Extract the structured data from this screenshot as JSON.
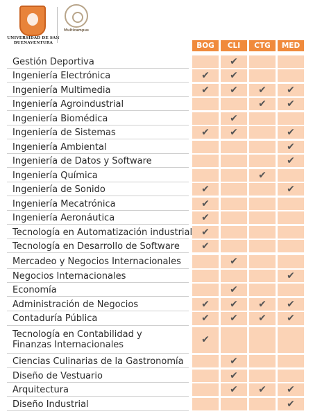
{
  "header": {
    "university": "UNIVERSIDAD DE SAN BUENAVENTURA",
    "multicampus": "Multicampus"
  },
  "columns": [
    "BOG",
    "CLI",
    "CTG",
    "MED"
  ],
  "check_glyph": "✔",
  "rows": [
    {
      "label": "Gestión Deportiva",
      "checks": [
        false,
        true,
        false,
        false
      ]
    },
    {
      "label": "Ingeniería Electrónica",
      "checks": [
        true,
        true,
        false,
        false
      ]
    },
    {
      "label": "Ingeniería Multimedia",
      "checks": [
        true,
        true,
        true,
        true
      ]
    },
    {
      "label": "Ingeniería Agroindustrial",
      "checks": [
        false,
        false,
        true,
        true
      ]
    },
    {
      "label": "Ingeniería Biomédica",
      "checks": [
        false,
        true,
        false,
        false
      ]
    },
    {
      "label": "Ingeniería de Sistemas",
      "checks": [
        true,
        true,
        false,
        true
      ]
    },
    {
      "label": "Ingeniería Ambiental",
      "checks": [
        false,
        false,
        false,
        true
      ]
    },
    {
      "label": "Ingeniería de Datos y Software",
      "checks": [
        false,
        false,
        false,
        true
      ]
    },
    {
      "label": "Ingeniería Química",
      "checks": [
        false,
        false,
        true,
        false
      ]
    },
    {
      "label": "Ingeniería de Sonido",
      "checks": [
        true,
        false,
        false,
        true
      ]
    },
    {
      "label": "Ingeniería Mecatrónica",
      "checks": [
        true,
        false,
        false,
        false
      ]
    },
    {
      "label": "Ingeniería Aeronáutica",
      "checks": [
        true,
        false,
        false,
        false
      ]
    },
    {
      "label": "Tecnología en Automatización industrial",
      "checks": [
        true,
        false,
        false,
        false
      ]
    },
    {
      "label": "Tecnología en Desarrollo de Software",
      "checks": [
        true,
        false,
        false,
        false
      ]
    },
    {
      "label": "Mercadeo y Negocios Internacionales",
      "checks": [
        false,
        true,
        false,
        false
      ]
    },
    {
      "label": "Negocios Internacionales",
      "checks": [
        false,
        false,
        false,
        true
      ]
    },
    {
      "label": "Economía",
      "checks": [
        false,
        true,
        false,
        false
      ]
    },
    {
      "label": "Administración de Negocios",
      "checks": [
        true,
        true,
        true,
        true
      ]
    },
    {
      "label": "Contaduría Pública",
      "checks": [
        true,
        true,
        true,
        true
      ]
    },
    {
      "label": "Tecnología en Contabilidad y\nFinanzas Internacionales",
      "checks": [
        true,
        false,
        false,
        false
      ]
    },
    {
      "label": "Ciencias Culinarias de la Gastronomía",
      "checks": [
        false,
        true,
        false,
        false
      ]
    },
    {
      "label": "Diseño de Vestuario",
      "checks": [
        false,
        true,
        false,
        false
      ]
    },
    {
      "label": "Arquitectura",
      "checks": [
        false,
        true,
        true,
        true
      ]
    },
    {
      "label": "Diseño Industrial",
      "checks": [
        false,
        false,
        false,
        true
      ]
    }
  ]
}
